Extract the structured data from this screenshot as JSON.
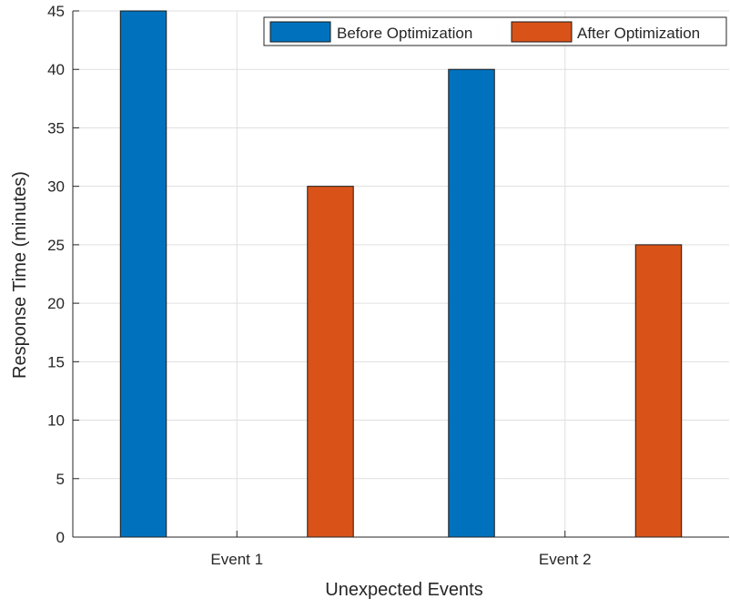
{
  "chart_data": {
    "type": "bar",
    "title": "",
    "xlabel": "Unexpected Events",
    "ylabel": "Response Time (minutes)",
    "categories": [
      "Event 1",
      "Event 2"
    ],
    "series": [
      {
        "name": "Before Optimization",
        "values": [
          45,
          40
        ],
        "color": "#0072BD"
      },
      {
        "name": "After Optimization",
        "values": [
          30,
          25
        ],
        "color": "#D95319"
      }
    ],
    "ylim": [
      0,
      45
    ],
    "yticks": [
      0,
      5,
      10,
      15,
      20,
      25,
      30,
      35,
      40,
      45
    ],
    "grid": true,
    "legend": "top-right"
  }
}
